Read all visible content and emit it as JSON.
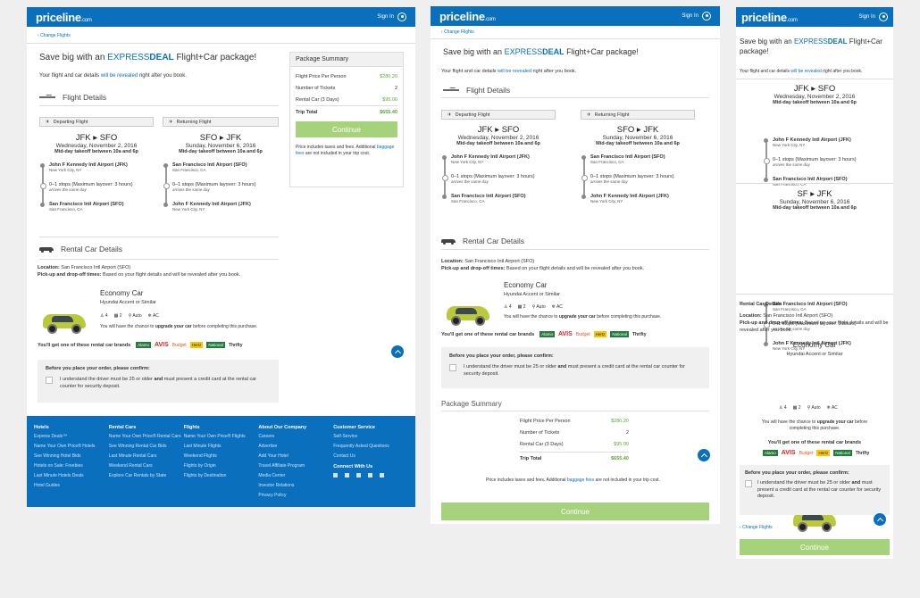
{
  "header": {
    "logo": "priceline",
    "logo_suffix": ".com",
    "sign_in": "Sign In"
  },
  "change_flights": "Change Flights",
  "headline": {
    "prefix": "Save big with an",
    "express": "EXPRESS",
    "deal": "DEAL",
    "suffix": "Flight+Car package!"
  },
  "reveal": {
    "prefix": "Your flight and car details",
    "link": "will be revealed",
    "suffix": "right after you book."
  },
  "flight_details_title": "Flight Details",
  "departing": {
    "label": "Departing Flight",
    "route_from": "JFK",
    "route_to": "SFO",
    "date": "Wednesday, November 2, 2016",
    "time": "Mid-day takeoff between 10a and 6p",
    "origin": {
      "name": "John F Kennedy Intl Airport (JFK)",
      "city": "New York City, NY"
    },
    "stops": {
      "text": "0–1 stops (Maximum layover: 3 hours)",
      "note": "arrives the same day"
    },
    "dest": {
      "name": "San Francisco Intl Airport (SFO)",
      "city": "San Francisco, CA"
    }
  },
  "returning": {
    "label": "Returning Flight",
    "route_from": "SFO",
    "route_to": "JFK",
    "date": "Sunday, November 6, 2016",
    "time": "Mid-day takeoff between 10a and 6p",
    "origin": {
      "name": "San Francisco Intl Airport (SFO)",
      "city": "San Francisco, CA"
    },
    "stops": {
      "text": "0–1 stops (Maximum layover: 3 hours)",
      "note": "arrives the same day"
    },
    "dest": {
      "name": "John F Kennedy Intl Airport (JFK)",
      "city": "New York City, NY"
    }
  },
  "mobile_returning": {
    "route_from": "SF",
    "route_to": "JFK",
    "date": "Sunday, November 6, 2016"
  },
  "rental": {
    "title": "Rental Car Details",
    "location_label": "Location:",
    "location": "San Francisco Intl Airport (SFO)",
    "times_label": "Pick-up and drop-off times:",
    "times": "Based on your flight details and will be revealed after you book.",
    "car_class": "Economy Car",
    "car_model": "Hyundai Accent or Similar",
    "features": {
      "people": "4",
      "bags": "2",
      "trans": "Auto",
      "ac": "AC"
    },
    "upgrade_prefix": "You will have the chance to",
    "upgrade_bold": "upgrade your car",
    "upgrade_suffix": "before completing this purchase.",
    "brands_label": "You'll get one of these rental car brands",
    "brands": [
      "Alamo",
      "AVIS",
      "Budget",
      "Hertz",
      "National",
      "Thrifty"
    ]
  },
  "confirm": {
    "title": "Before you place your order, please confirm:",
    "text_prefix": "I understand the driver must be 25 or older",
    "text_and": "and",
    "text_suffix": "must present a credit card at the rental car counter for security deposit."
  },
  "summary": {
    "title": "Package Summary",
    "rows": [
      {
        "label": "Flight Price Per Person",
        "value": "$280.20"
      },
      {
        "label": "Number of Tickets",
        "value": "2"
      },
      {
        "label": "Rental Car (3 Days)",
        "value": "$95.00"
      }
    ],
    "total_label": "Trip Total",
    "total": "$655.40",
    "button": "Continue",
    "note_prefix": "Price includes taxes and fees. Additional",
    "note_link": "baggage fees",
    "note_suffix": "are not included in your trip cost."
  },
  "footer": {
    "hotels": {
      "title": "Hotels",
      "items": [
        "Express Deals™",
        "Name Your Own Price® Hotels",
        "See Winning Hotel Bids",
        "Hotels on Sale: Freebies",
        "Last Minute Hotels Deals",
        "Hotel Guides"
      ]
    },
    "cars": {
      "title": "Rental Cars",
      "items": [
        "Name Your Own Price® Rental Cars",
        "See Winning Rental Car Bids",
        "Last Minute Rental Cars",
        "Weekend Rental Cars",
        "Explore Car Rentals by State"
      ]
    },
    "flights": {
      "title": "Flights",
      "items": [
        "Name Your Own Price® Flights",
        "Last Minute Flights",
        "Weekend Flights",
        "Flights by Origin",
        "Flights by Destination"
      ]
    },
    "company": {
      "title": "About Our Company",
      "items": [
        "Careers",
        "Advertise",
        "Add Your Hotel",
        "Travel Affiliate Program",
        "Media Center",
        "Investor Relations",
        "Privacy Policy"
      ]
    },
    "service": {
      "title": "Customer Service",
      "items": [
        "Self-Service",
        "Frequently Asked Questions",
        "Contact Us"
      ],
      "connect": "Connect With Us"
    }
  },
  "colors": {
    "brand_blue": "#0a6fbd",
    "continue_green": "#a5d27a",
    "price_green": "#5aa53a",
    "car_green": "#b9c93a"
  }
}
